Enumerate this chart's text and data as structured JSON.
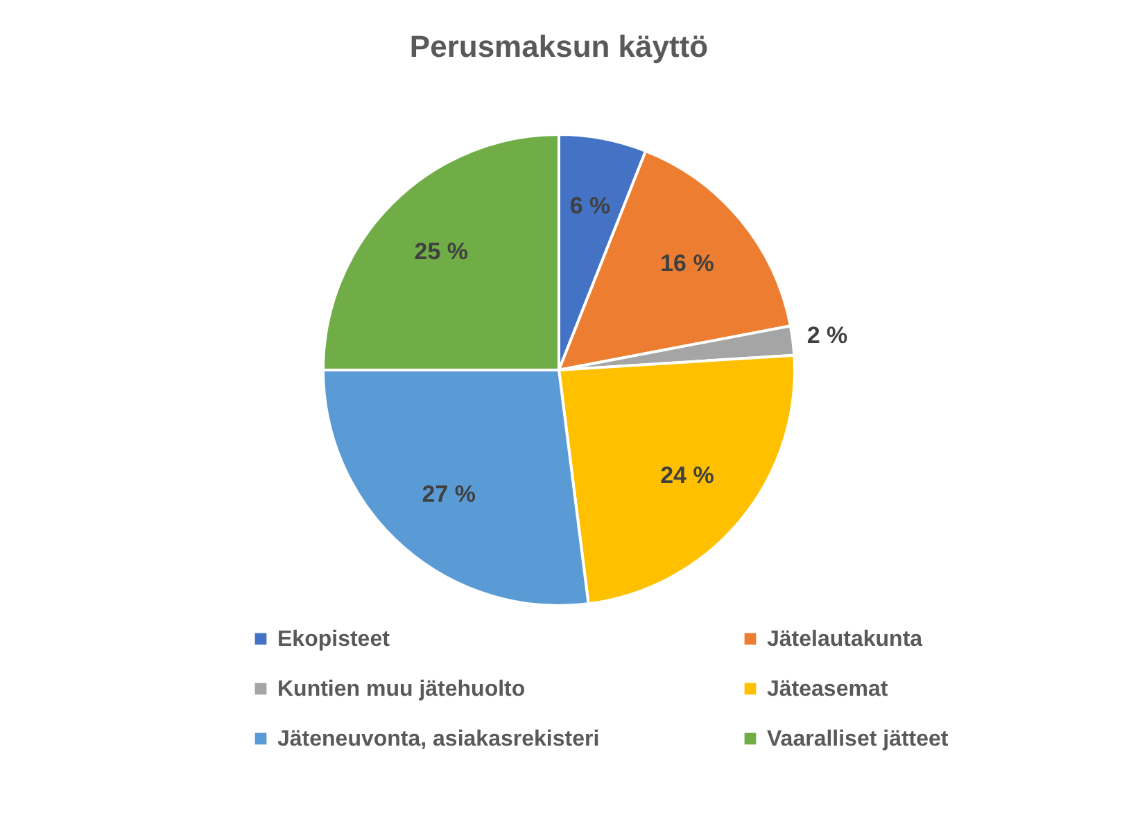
{
  "chart_data": {
    "type": "pie",
    "title": "Perusmaksun käyttö",
    "categories": [
      "Ekopisteet",
      "Jätelautakunta",
      "Kuntien muu jätehuolto",
      "Jäteasemat",
      "Jäteneuvonta, asiakasrekisteri",
      "Vaaralliset jätteet"
    ],
    "values": [
      6,
      16,
      2,
      24,
      27,
      25
    ],
    "value_labels": [
      "6 %",
      "16 %",
      "2 %",
      "24 %",
      "27 %",
      "25 %"
    ],
    "colors": [
      "#4472c4",
      "#ed7d31",
      "#a5a5a5",
      "#ffc000",
      "#5b9bd5",
      "#70ad47"
    ],
    "legend": "bottom"
  }
}
